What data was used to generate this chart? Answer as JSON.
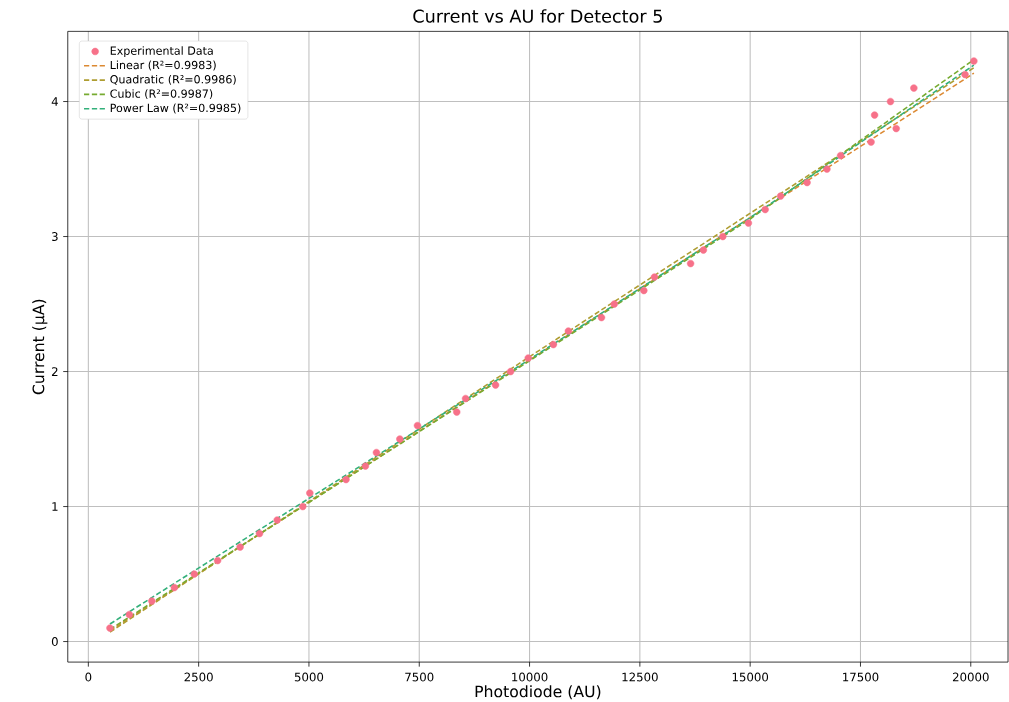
{
  "chart_data": {
    "type": "scatter",
    "title": "Current vs AU for Detector 5",
    "xlabel": "Photodiode (AU)",
    "ylabel": "Current (µA)",
    "xlim": [
      -466,
      20844
    ],
    "ylim": [
      -0.152,
      4.52
    ],
    "xticks": [
      0,
      2500,
      5000,
      7500,
      10000,
      12500,
      15000,
      17500,
      20000
    ],
    "yticks": [
      0,
      1,
      2,
      3,
      4
    ],
    "grid": true,
    "legend": "top left",
    "series": [
      {
        "name": "Experimental Data",
        "marker": "circle",
        "color": "#f77189",
        "x": [
          490,
          930,
          1440,
          1950,
          2400,
          2930,
          3440,
          3880,
          4280,
          4860,
          5020,
          5840,
          6280,
          6530,
          7060,
          7460,
          8350,
          8550,
          9230,
          9570,
          9970,
          10540,
          10880,
          11630,
          11920,
          12590,
          12830,
          13650,
          13940,
          14380,
          14960,
          15340,
          15690,
          16290,
          16740,
          17050,
          17740,
          17820,
          18180,
          18310,
          18710,
          19870,
          20070
        ],
        "values": [
          0.1,
          0.2,
          0.3,
          0.4,
          0.5,
          0.6,
          0.7,
          0.8,
          0.9,
          1.0,
          1.1,
          1.2,
          1.3,
          1.4,
          1.5,
          1.6,
          1.7,
          1.8,
          1.9,
          2.0,
          2.1,
          2.2,
          2.3,
          2.4,
          2.5,
          2.6,
          2.7,
          2.8,
          2.9,
          3.0,
          3.1,
          3.2,
          3.3,
          3.4,
          3.5,
          3.6,
          3.7,
          3.9,
          4.0,
          3.8,
          4.1,
          4.2,
          4.3
        ]
      },
      {
        "name": "Linear (R²=0.9983)",
        "type": "line",
        "line_style": "dashed",
        "color": "#dc8932",
        "x": [
          490,
          20070
        ],
        "values": [
          0.08,
          4.21
        ]
      },
      {
        "name": "Quadratic (R²=0.9986)",
        "type": "line",
        "line_style": "dashed",
        "color": "#ae9d31",
        "x": [
          490,
          10000,
          20070
        ],
        "values": [
          0.07,
          2.11,
          4.25
        ]
      },
      {
        "name": "Cubic (R²=0.9987)",
        "type": "line",
        "line_style": "dashed",
        "color": "#77ab31",
        "x": [
          490,
          5000,
          10000,
          15000,
          20070
        ],
        "values": [
          0.09,
          1.03,
          2.08,
          3.13,
          4.31
        ]
      },
      {
        "name": "Power Law (R²=0.9985)",
        "type": "line",
        "line_style": "dashed",
        "color": "#33b07a",
        "x": [
          490,
          5000,
          10000,
          15000,
          20070
        ],
        "values": [
          0.13,
          1.06,
          2.09,
          3.14,
          4.27
        ]
      }
    ]
  }
}
